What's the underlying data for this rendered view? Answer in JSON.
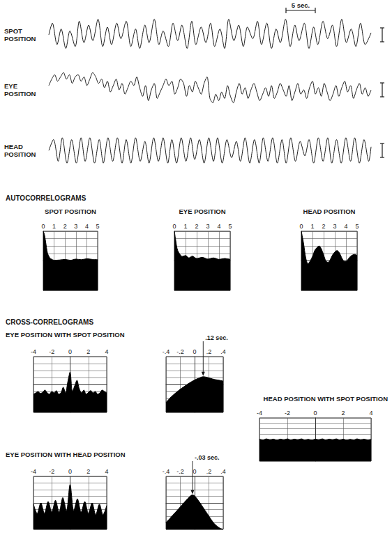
{
  "headings": {
    "autocorrelograms": "AUTOCORRELOGRAMS",
    "cross_correlograms": "CROSS-CORRELOGRAMS"
  },
  "chart_data": [
    {
      "type": "line",
      "title": "SPOT POSITION",
      "color": "#1a1a1a",
      "marker": "none",
      "line_style": "solid",
      "grid": false,
      "tick_labels": false,
      "xlim": [
        0,
        55
      ],
      "ylim": [
        -10,
        10
      ],
      "scale_bar": {
        "label": "5 sec.",
        "value": 5
      },
      "x": [
        0,
        0.6,
        1.4,
        2.1,
        2.9,
        3.6,
        4.5,
        5.2,
        6.0,
        6.8,
        7.5,
        8.4,
        9.2,
        10.0,
        10.7,
        11.6,
        12.3,
        13.2,
        14.0,
        14.8,
        15.5,
        16.4,
        17.1,
        18.0,
        18.8,
        19.5,
        20.4,
        21.2,
        22.0,
        22.7,
        23.6,
        24.4,
        25.1,
        26.0,
        26.8,
        27.6,
        28.3,
        29.2,
        30.0,
        30.7,
        31.6,
        32.4,
        33.2,
        33.9,
        34.8,
        35.6,
        36.3,
        37.2,
        38.0,
        38.8,
        39.5,
        40.4,
        41.2,
        42.0,
        42.7,
        43.6,
        44.4,
        45.2,
        45.9,
        46.8,
        47.6,
        48.4,
        49.1,
        50.0,
        50.8,
        51.6,
        52.4,
        53.2,
        54.0,
        55.0
      ],
      "values": [
        0,
        6,
        -5,
        3,
        -7,
        2,
        -6,
        7,
        -4,
        5,
        -3,
        8,
        -6,
        4,
        -5,
        6,
        -2,
        7,
        -6,
        3,
        -7,
        5,
        -4,
        8,
        -5,
        2,
        -6,
        6,
        -3,
        5,
        -7,
        7,
        -5,
        4,
        -4,
        6,
        -6,
        3,
        -7,
        8,
        -3,
        5,
        -6,
        4,
        -2,
        7,
        -5,
        6,
        -7,
        3,
        -4,
        8,
        -6,
        5,
        -3,
        6,
        -7,
        4,
        -5,
        7,
        -2,
        5,
        -6,
        8,
        -4,
        3,
        -6,
        6,
        -5,
        1
      ]
    },
    {
      "type": "line",
      "title": "EYE POSITION",
      "color": "#1a1a1a",
      "marker": "none",
      "line_style": "solid",
      "grid": false,
      "tick_labels": false,
      "xlim": [
        0,
        55
      ],
      "ylim": [
        -10,
        10
      ],
      "x": [
        0,
        0.5,
        1,
        1.5,
        2,
        2.5,
        3,
        3.5,
        4,
        4.5,
        5,
        5.5,
        6,
        6.5,
        7,
        7.5,
        8,
        8.5,
        9,
        9.5,
        10,
        10.5,
        11,
        11.5,
        12,
        12.5,
        13,
        13.5,
        14,
        14.5,
        15,
        15.5,
        16,
        16.5,
        17,
        17.5,
        18,
        18.5,
        19,
        19.5,
        20,
        20.5,
        21,
        21.5,
        22,
        22.5,
        23,
        23.5,
        24,
        24.5,
        25,
        25.5,
        26,
        26.5,
        27,
        27.5,
        28,
        28.5,
        29,
        29.5,
        30,
        30.5,
        31,
        31.5,
        32,
        32.5,
        33,
        33.5,
        34,
        34.5,
        35,
        35.5,
        36,
        36.5,
        37,
        37.5,
        38,
        38.5,
        39,
        39.5,
        40,
        40.5,
        41,
        41.5,
        42,
        42.5,
        43,
        43.5,
        44,
        44.5,
        45,
        45.5,
        46,
        46.5,
        47,
        47.5,
        48,
        48.5,
        49,
        49.5,
        50,
        50.5,
        51,
        51.5,
        52,
        52.5,
        53,
        53.5,
        54,
        54.5,
        55
      ],
      "values": [
        2,
        5,
        7,
        4,
        6,
        8,
        5,
        7,
        3,
        6,
        7,
        4,
        6,
        2,
        5,
        8,
        6,
        3,
        5,
        1,
        4,
        -1,
        2,
        5,
        0,
        3,
        -2,
        1,
        4,
        2,
        6,
        1,
        -3,
        2,
        -5,
        0,
        3,
        -4,
        -1,
        2,
        5,
        2,
        4,
        -2,
        1,
        5,
        3,
        -3,
        2,
        -1,
        4,
        1,
        -2,
        3,
        6,
        -4,
        -6,
        -2,
        -5,
        -1,
        -4,
        2,
        -3,
        -6,
        -1,
        3,
        -2,
        1,
        -4,
        0,
        3,
        -1,
        -5,
        -2,
        1,
        -3,
        2,
        -4,
        -1,
        3,
        0,
        -3,
        2,
        -5,
        -1,
        3,
        -2,
        0,
        -4,
        1,
        4,
        -2,
        1,
        -3,
        3,
        -1,
        -5,
        -2,
        2,
        -3,
        1,
        4,
        -1,
        2,
        -4,
        0,
        3,
        -2,
        1,
        -3,
        0
      ]
    },
    {
      "type": "line",
      "title": "HEAD POSITION",
      "color": "#1a1a1a",
      "marker": "none",
      "line_style": "solid",
      "grid": false,
      "tick_labels": false,
      "xlim": [
        0,
        55
      ],
      "ylim": [
        -10,
        10
      ],
      "x": [
        0,
        0.8,
        1.6,
        2.3,
        3.1,
        3.9,
        4.7,
        5.5,
        6.2,
        7.0,
        7.8,
        8.6,
        9.3,
        10.1,
        10.9,
        11.7,
        12.5,
        13.2,
        14.0,
        14.8,
        15.6,
        16.4,
        17.1,
        17.9,
        18.7,
        19.5,
        20.3,
        21.0,
        21.8,
        22.6,
        23.4,
        24.2,
        24.9,
        25.7,
        26.5,
        27.3,
        28.1,
        28.8,
        29.6,
        30.4,
        31.2,
        32.0,
        32.7,
        33.5,
        34.3,
        35.1,
        35.9,
        36.6,
        37.4,
        38.2,
        39.0,
        39.8,
        40.5,
        41.3,
        42.1,
        42.9,
        43.7,
        44.4,
        45.2,
        46.0,
        46.8,
        47.6,
        48.3,
        49.1,
        49.9,
        50.7,
        51.5,
        52.2,
        53.0,
        53.8,
        54.6,
        55.0
      ],
      "values": [
        0,
        6,
        -6,
        7,
        -7,
        6,
        -7,
        7,
        -6,
        7,
        -7,
        6,
        -7,
        7,
        -6,
        7,
        -7,
        6,
        -7,
        7,
        -6,
        5,
        -7,
        7,
        -6,
        7,
        -7,
        6,
        -7,
        7,
        -6,
        7,
        -5,
        6,
        -7,
        7,
        -6,
        7,
        -7,
        6,
        -4,
        5,
        -6,
        7,
        -7,
        6,
        -7,
        7,
        -6,
        7,
        -7,
        6,
        -7,
        7,
        -6,
        5,
        -3,
        6,
        -7,
        7,
        -6,
        7,
        -7,
        6,
        -7,
        7,
        -6,
        7,
        -7,
        6,
        -6,
        2
      ]
    },
    {
      "type": "area",
      "title": "SPOT POSITION",
      "color": "#000000",
      "marker": "none",
      "line_style": "solid",
      "grid": true,
      "tick_labels": "x",
      "xlim": [
        0,
        5
      ],
      "xticks": [
        0,
        1,
        2,
        3,
        4,
        5
      ],
      "ylim": [
        -1,
        1
      ],
      "yticks": [
        -1,
        -0.75,
        -0.5,
        -0.25,
        0,
        0.25,
        0.5,
        0.75,
        1
      ],
      "x": [
        0,
        0.1,
        0.2,
        0.3,
        0.4,
        0.6,
        0.8,
        1.0,
        1.5,
        2.0,
        2.5,
        3.0,
        3.5,
        4.0,
        4.5,
        5.0
      ],
      "values": [
        1,
        0.9,
        0.7,
        0.45,
        0.25,
        0.1,
        0.05,
        0.02,
        0.03,
        0.05,
        0.02,
        0.06,
        0.04,
        0.07,
        0.05,
        0.04
      ]
    },
    {
      "type": "area",
      "title": "EYE POSITION",
      "color": "#000000",
      "marker": "none",
      "line_style": "solid",
      "grid": true,
      "tick_labels": "x",
      "xlim": [
        0,
        5
      ],
      "xticks": [
        0,
        1,
        2,
        3,
        4,
        5
      ],
      "ylim": [
        -1,
        1
      ],
      "yticks": [
        -1,
        -0.75,
        -0.5,
        -0.25,
        0,
        0.25,
        0.5,
        0.75,
        1
      ],
      "x": [
        0,
        0.1,
        0.2,
        0.3,
        0.5,
        0.7,
        1.0,
        1.3,
        1.6,
        2.0,
        2.5,
        3.0,
        3.5,
        4.0,
        4.5,
        5.0
      ],
      "values": [
        1,
        0.75,
        0.5,
        0.35,
        0.22,
        0.15,
        0.18,
        0.1,
        0.16,
        0.08,
        0.12,
        0.06,
        0.1,
        0.05,
        0.08,
        0.05
      ]
    },
    {
      "type": "area",
      "title": "HEAD POSITION",
      "color": "#000000",
      "marker": "none",
      "line_style": "solid",
      "grid": true,
      "tick_labels": "x",
      "xlim": [
        0,
        5
      ],
      "xticks": [
        0,
        1,
        2,
        3,
        4,
        5
      ],
      "ylim": [
        -1,
        1
      ],
      "yticks": [
        -1,
        -0.75,
        -0.5,
        -0.25,
        0,
        0.25,
        0.5,
        0.75,
        1
      ],
      "x": [
        0,
        0.2,
        0.4,
        0.6,
        0.8,
        1.0,
        1.2,
        1.4,
        1.6,
        1.8,
        2.0,
        2.2,
        2.4,
        2.6,
        2.8,
        3.0,
        3.2,
        3.4,
        3.6,
        3.8,
        4.0,
        4.2,
        4.4,
        4.6,
        4.8,
        5.0
      ],
      "values": [
        1,
        0.6,
        0.1,
        -0.1,
        0,
        0.15,
        0.35,
        0.45,
        0.5,
        0.4,
        0.2,
        0,
        -0.05,
        0.05,
        0.2,
        0.3,
        0.35,
        0.28,
        0.12,
        0,
        -0.02,
        0.06,
        0.15,
        0.2,
        0.22,
        0.18
      ]
    },
    {
      "type": "area",
      "title": "EYE POSITION WITH SPOT POSITION",
      "color": "#000000",
      "marker": "none",
      "line_style": "solid",
      "grid": true,
      "tick_labels": "x",
      "xlim": [
        -4,
        4
      ],
      "xticks": [
        -4,
        -2,
        0,
        2,
        4
      ],
      "ylim": [
        -1,
        1
      ],
      "yticks": [
        -1,
        -0.75,
        -0.5,
        -0.25,
        0,
        0.25,
        0.5,
        0.75,
        1
      ],
      "x": [
        -4,
        -3.75,
        -3.5,
        -3.25,
        -3,
        -2.75,
        -2.5,
        -2.25,
        -2,
        -1.75,
        -1.5,
        -1.25,
        -1,
        -0.75,
        -0.5,
        -0.25,
        0,
        0.25,
        0.5,
        0.75,
        1,
        1.25,
        1.5,
        1.75,
        2,
        2.25,
        2.5,
        2.75,
        3,
        3.25,
        3.5,
        3.75,
        4
      ],
      "values": [
        -0.35,
        -0.3,
        -0.25,
        -0.32,
        -0.28,
        -0.2,
        -0.3,
        -0.35,
        -0.25,
        -0.3,
        -0.22,
        -0.35,
        -0.3,
        -0.1,
        -0.3,
        0.1,
        0.45,
        -0.25,
        -0.05,
        0.15,
        -0.15,
        -0.3,
        -0.2,
        -0.35,
        -0.28,
        -0.22,
        -0.3,
        -0.25,
        -0.35,
        -0.3,
        -0.2,
        -0.25,
        -0.3
      ]
    },
    {
      "type": "area",
      "color": "#000000",
      "marker": "none",
      "line_style": "solid",
      "grid": true,
      "tick_labels": "x",
      "xlim": [
        -0.4,
        0.4
      ],
      "xticks": [
        {
          "value": -0.4,
          "label": "-.4"
        },
        {
          "value": -0.2,
          "label": "-.2"
        },
        0,
        {
          "value": 0.2,
          "label": ".2"
        },
        {
          "value": 0.4,
          "label": ".4"
        }
      ],
      "ylim": [
        -1,
        1
      ],
      "yticks": [
        -1,
        -0.75,
        -0.5,
        -0.25,
        0,
        0.25,
        0.5,
        0.75,
        1
      ],
      "annotations": [
        {
          "text": ".12 sec.",
          "x": 0.12
        }
      ],
      "x": [
        -0.4,
        -0.35,
        -0.3,
        -0.25,
        -0.2,
        -0.15,
        -0.1,
        -0.05,
        0,
        0.05,
        0.1,
        0.12,
        0.15,
        0.2,
        0.25,
        0.3,
        0.35,
        0.4
      ],
      "values": [
        -0.65,
        -0.5,
        -0.38,
        -0.27,
        -0.17,
        -0.08,
        0.01,
        0.09,
        0.16,
        0.22,
        0.27,
        0.28,
        0.27,
        0.24,
        0.2,
        0.17,
        0.15,
        0.12
      ]
    },
    {
      "type": "area",
      "title": "HEAD POSITION WITH SPOT POSITION",
      "color": "#000000",
      "marker": "none",
      "line_style": "solid",
      "grid": true,
      "tick_labels": "x",
      "xlim": [
        -4,
        4
      ],
      "xticks": [
        -4,
        -2,
        0,
        2,
        4
      ],
      "ylim": [
        -1,
        1
      ],
      "yticks": [
        -1,
        -0.75,
        -0.5,
        -0.25,
        0,
        0.25,
        0.5,
        0.75,
        1
      ],
      "x": [
        -4,
        -3.75,
        -3.5,
        -3.25,
        -3,
        -2.75,
        -2.5,
        -2.25,
        -2,
        -1.75,
        -1.5,
        -1.25,
        -1,
        -0.75,
        -0.5,
        -0.25,
        0,
        0.25,
        0.5,
        0.75,
        1,
        1.25,
        1.5,
        1.75,
        2,
        2.25,
        2.5,
        2.75,
        3,
        3.25,
        3.5,
        3.75,
        4
      ],
      "values": [
        0.02,
        -0.02,
        0.03,
        -0.01,
        0.02,
        -0.03,
        0.02,
        -0.01,
        0.03,
        -0.02,
        0.02,
        -0.01,
        0.03,
        -0.02,
        0.01,
        -0.03,
        0.02,
        -0.01,
        0.03,
        -0.02,
        0.02,
        -0.01,
        0.03,
        -0.02,
        0.02,
        -0.03,
        0.01,
        -0.02,
        0.03,
        -0.01,
        0.02,
        -0.02,
        0.01
      ]
    },
    {
      "type": "area",
      "title": "EYE POSITION WITH HEAD POSITION",
      "color": "#000000",
      "marker": "none",
      "line_style": "solid",
      "grid": true,
      "tick_labels": "x",
      "xlim": [
        -4,
        4
      ],
      "xticks": [
        -4,
        -2,
        0,
        2,
        4
      ],
      "ylim": [
        -1,
        1
      ],
      "yticks": [
        -1,
        -0.75,
        -0.5,
        -0.25,
        0,
        0.25,
        0.5,
        0.75,
        1
      ],
      "x": [
        -4,
        -3.6,
        -3.2,
        -2.8,
        -2.4,
        -2,
        -1.6,
        -1.2,
        -0.8,
        -0.4,
        0,
        0.4,
        0.8,
        1.2,
        1.6,
        2,
        2.4,
        2.8,
        3.2,
        3.6,
        4
      ],
      "values": [
        -0.05,
        -0.4,
        0.0,
        -0.4,
        0.05,
        -0.35,
        0.1,
        -0.35,
        0.2,
        -0.3,
        0.7,
        -0.3,
        0.15,
        -0.35,
        0.05,
        -0.4,
        0.0,
        -0.45,
        -0.05,
        -0.45,
        -0.1
      ]
    },
    {
      "type": "area",
      "color": "#000000",
      "marker": "none",
      "line_style": "solid",
      "grid": true,
      "tick_labels": "x",
      "xlim": [
        -0.4,
        0.4
      ],
      "xticks": [
        {
          "value": -0.4,
          "label": "-.4"
        },
        {
          "value": -0.2,
          "label": "-.2"
        },
        0,
        {
          "value": 0.2,
          "label": ".2"
        },
        {
          "value": 0.4,
          "label": ".4"
        }
      ],
      "ylim": [
        -1,
        1
      ],
      "yticks": [
        -1,
        -0.75,
        -0.5,
        -0.25,
        0,
        0.25,
        0.5,
        0.75,
        1
      ],
      "annotations": [
        {
          "text": "-.03 sec.",
          "x": -0.03
        }
      ],
      "x": [
        -0.4,
        -0.35,
        -0.3,
        -0.25,
        -0.2,
        -0.15,
        -0.1,
        -0.05,
        -0.03,
        0,
        0.05,
        0.1,
        0.15,
        0.2,
        0.25,
        0.3,
        0.35,
        0.4
      ],
      "values": [
        -0.75,
        -0.6,
        -0.45,
        -0.3,
        -0.15,
        0,
        0.15,
        0.28,
        0.3,
        0.26,
        0.1,
        -0.1,
        -0.3,
        -0.5,
        -0.7,
        -0.85,
        -0.95,
        -1.0
      ]
    }
  ]
}
